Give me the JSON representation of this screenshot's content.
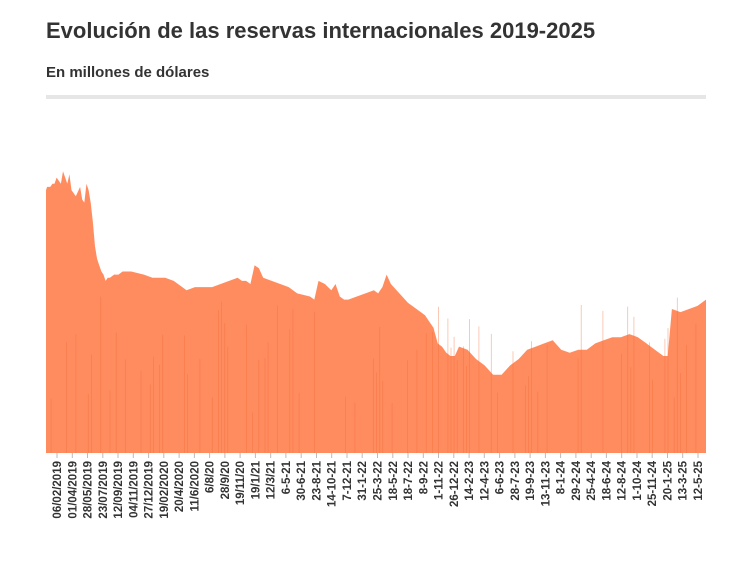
{
  "title": "Evolución de las reservas internacionales 2019-2025",
  "subtitle": "En millones de dólares",
  "colors": {
    "bar": "#ff8c5f",
    "bar_dark": "#f06a36",
    "rule": "#e6e6e6",
    "text": "#333333"
  },
  "chart_data": {
    "type": "area",
    "title": "Evolución de las reservas internacionales 2019-2025",
    "subtitle": "En millones de dólares",
    "xlabel": "",
    "ylabel": "",
    "y_axis_shown": false,
    "grid": false,
    "series": [
      {
        "values": [
          [
            0,
            84
          ],
          [
            0.5,
            85
          ],
          [
            2,
            85
          ],
          [
            3,
            86
          ],
          [
            4,
            86
          ],
          [
            5,
            88
          ],
          [
            6,
            87
          ],
          [
            7,
            86
          ],
          [
            8,
            90
          ],
          [
            9,
            88
          ],
          [
            10,
            86
          ],
          [
            11,
            89
          ],
          [
            12,
            84
          ],
          [
            14,
            82
          ],
          [
            16,
            85
          ],
          [
            17,
            81
          ],
          [
            18,
            80
          ],
          [
            19,
            86
          ],
          [
            20,
            84
          ],
          [
            21,
            80
          ],
          [
            22,
            74
          ],
          [
            23,
            66
          ],
          [
            24,
            62
          ],
          [
            25,
            60
          ],
          [
            26,
            58
          ],
          [
            27,
            57
          ],
          [
            28,
            55
          ],
          [
            29,
            56
          ],
          [
            30,
            56
          ],
          [
            32,
            57
          ],
          [
            34,
            57
          ],
          [
            36,
            58
          ],
          [
            40,
            58
          ],
          [
            46,
            57
          ],
          [
            50,
            56
          ],
          [
            56,
            56
          ],
          [
            60,
            55
          ],
          [
            64,
            53
          ],
          [
            66,
            52
          ],
          [
            70,
            53
          ],
          [
            74,
            53
          ],
          [
            78,
            53
          ],
          [
            82,
            54
          ],
          [
            86,
            55
          ],
          [
            90,
            56
          ],
          [
            92,
            55
          ],
          [
            94,
            55
          ],
          [
            96,
            54
          ],
          [
            98,
            60
          ],
          [
            100,
            59
          ],
          [
            102,
            56
          ],
          [
            106,
            55
          ],
          [
            110,
            54
          ],
          [
            114,
            53
          ],
          [
            118,
            51
          ],
          [
            124,
            50
          ],
          [
            126,
            49
          ],
          [
            128,
            55
          ],
          [
            131,
            54
          ],
          [
            134,
            52
          ],
          [
            136,
            54
          ],
          [
            138,
            50
          ],
          [
            140,
            49
          ],
          [
            142,
            49
          ],
          [
            146,
            50
          ],
          [
            150,
            51
          ],
          [
            154,
            52
          ],
          [
            156,
            51
          ],
          [
            158,
            53
          ],
          [
            160,
            57
          ],
          [
            162,
            54
          ],
          [
            166,
            51
          ],
          [
            170,
            48
          ],
          [
            174,
            46
          ],
          [
            178,
            44
          ],
          [
            180,
            42
          ],
          [
            182,
            40
          ],
          [
            184,
            35
          ],
          [
            186,
            34
          ],
          [
            188,
            32
          ],
          [
            190,
            31
          ],
          [
            192,
            31
          ],
          [
            194,
            34
          ],
          [
            198,
            33
          ],
          [
            202,
            30
          ],
          [
            206,
            28
          ],
          [
            210,
            25
          ],
          [
            214,
            25
          ],
          [
            218,
            28
          ],
          [
            222,
            30
          ],
          [
            226,
            33
          ],
          [
            230,
            34
          ],
          [
            234,
            35
          ],
          [
            238,
            36
          ],
          [
            242,
            33
          ],
          [
            246,
            32
          ],
          [
            250,
            33
          ],
          [
            254,
            33
          ],
          [
            258,
            35
          ],
          [
            262,
            36
          ],
          [
            266,
            37
          ],
          [
            270,
            37
          ],
          [
            274,
            38
          ],
          [
            278,
            37
          ],
          [
            282,
            35
          ],
          [
            286,
            33
          ],
          [
            290,
            31
          ],
          [
            292,
            31
          ],
          [
            294,
            46
          ],
          [
            298,
            45
          ],
          [
            302,
            46
          ],
          [
            306,
            47
          ],
          [
            310,
            49
          ]
        ]
      }
    ],
    "x_tick_labels": [
      "06/02/2019",
      "01/04/2019",
      "28/05/2019",
      "23/07/2019",
      "12/09/2019",
      "04/11/2019",
      "27/12/2019",
      "19/02/2020",
      "20/4/2020",
      "11/6/2020",
      "6/8/20",
      "28/9/20",
      "19/11/20",
      "19/1/21",
      "12/3/21",
      "6-5-21",
      "30-6-21",
      "23-8-21",
      "14-10-21",
      "7-12-21",
      "31-1-22",
      "25-3-22",
      "18-5-22",
      "18-7-22",
      "8-9-22",
      "1-11-22",
      "26-12-22",
      "14-2-23",
      "12-4-23",
      "6-6-23",
      "28-7-23",
      "19-9-23",
      "13-11-23",
      "8-1-24",
      "29-2-24",
      "25-4-24",
      "18-6-24",
      "12-8-24",
      "1-10-24",
      "25-11-24",
      "20-1-25",
      "13-3-25",
      "12-5-25"
    ]
  }
}
